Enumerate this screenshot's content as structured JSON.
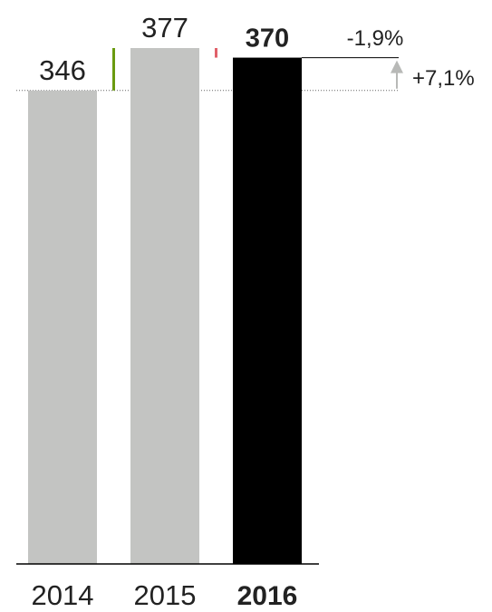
{
  "chart_data": {
    "type": "bar",
    "categories": [
      "2014",
      "2015",
      "2016"
    ],
    "values": [
      346,
      377,
      370
    ],
    "value_labels": [
      "346",
      "377",
      "370"
    ],
    "highlight_category": "2016",
    "ylim": [
      0,
      377
    ],
    "deltas": [
      {
        "from": "2014",
        "to": "2015",
        "value": 31,
        "color": "#6a9a10"
      },
      {
        "from": "2015",
        "to": "2016",
        "value": -7,
        "color": "#e0606a"
      }
    ],
    "annotations": [
      {
        "label": "-1,9%",
        "from": "2015",
        "to": "2016"
      },
      {
        "label": "+7,1%",
        "from": "2014",
        "to": "2016"
      }
    ],
    "colors": {
      "bar": "#c3c4c2",
      "highlight_bar": "#000000",
      "increase": "#6a9a10",
      "decrease": "#e0606a",
      "arrow": "#b8b9b7",
      "baseline": "#000000",
      "reference_line": "#666666"
    }
  }
}
